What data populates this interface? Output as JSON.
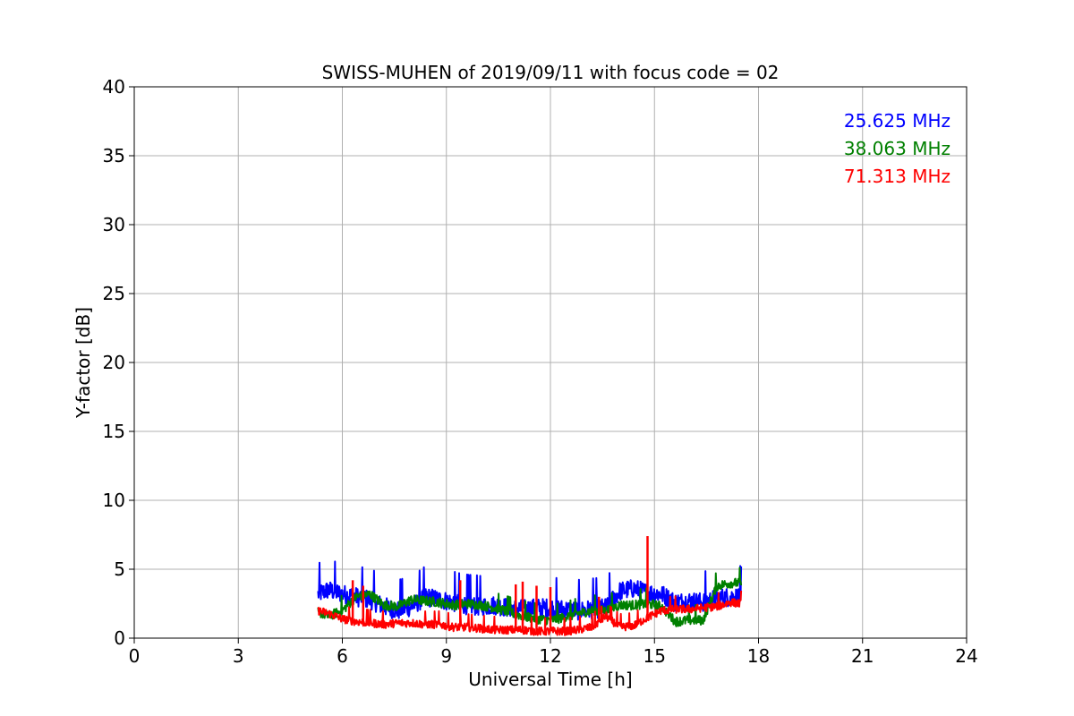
{
  "chart_data": {
    "type": "line",
    "title": "SWISS-MUHEN of 2019/09/11 with focus code = 02",
    "xlabel": "Universal Time [h]",
    "ylabel": "Y-factor [dB]",
    "xlim": [
      0,
      24
    ],
    "ylim": [
      0,
      40
    ],
    "xticks": [
      "0",
      "3",
      "6",
      "9",
      "12",
      "15",
      "18",
      "21",
      "24"
    ],
    "yticks": [
      "0",
      "5",
      "10",
      "15",
      "20",
      "25",
      "30",
      "35",
      "40"
    ],
    "grid": true,
    "legend_position": "top-right",
    "series": [
      {
        "name": "25.625 MHz",
        "color": "#0000ff",
        "x": [
          5.3,
          5.6,
          6.0,
          6.4,
          6.8,
          7.2,
          7.6,
          8.0,
          8.4,
          8.8,
          9.2,
          9.6,
          10.0,
          10.4,
          10.8,
          11.2,
          11.6,
          12.0,
          12.4,
          12.8,
          13.2,
          13.6,
          14.0,
          14.4,
          14.8,
          15.2,
          15.6,
          16.0,
          16.4,
          16.8,
          17.2,
          17.5
        ],
        "y": [
          3.2,
          3.5,
          3.2,
          3.0,
          2.8,
          2.3,
          2.0,
          2.3,
          3.0,
          2.8,
          2.6,
          2.4,
          2.3,
          2.4,
          2.2,
          2.1,
          2.2,
          2.2,
          2.1,
          2.0,
          2.1,
          2.2,
          3.4,
          3.6,
          3.3,
          3.2,
          2.6,
          2.7,
          2.6,
          2.9,
          3.0,
          3.0
        ],
        "noise": 0.7
      },
      {
        "name": "38.063 MHz",
        "color": "#008000",
        "x": [
          5.3,
          5.6,
          6.0,
          6.4,
          6.8,
          7.2,
          7.6,
          8.0,
          8.4,
          8.8,
          9.2,
          9.6,
          10.0,
          10.4,
          10.8,
          11.2,
          11.6,
          12.0,
          12.4,
          12.8,
          13.2,
          13.6,
          14.0,
          14.4,
          14.8,
          15.2,
          15.6,
          16.0,
          16.4,
          16.8,
          17.2,
          17.5
        ],
        "y": [
          1.9,
          1.6,
          2.0,
          3.0,
          3.2,
          2.4,
          2.3,
          2.8,
          2.7,
          2.6,
          2.4,
          2.5,
          2.4,
          2.2,
          1.9,
          1.6,
          1.4,
          1.3,
          1.5,
          1.8,
          2.0,
          2.0,
          2.4,
          2.4,
          2.5,
          2.3,
          1.2,
          1.3,
          1.3,
          3.8,
          4.0,
          4.0
        ],
        "noise": 0.35
      },
      {
        "name": "71.313 MHz",
        "color": "#ff0000",
        "x": [
          5.3,
          5.6,
          6.0,
          6.4,
          6.8,
          7.2,
          7.6,
          8.0,
          8.4,
          8.8,
          9.2,
          9.6,
          10.0,
          10.4,
          10.8,
          11.2,
          11.6,
          12.0,
          12.4,
          12.8,
          13.2,
          13.6,
          14.0,
          14.4,
          14.8,
          15.2,
          15.6,
          16.0,
          16.4,
          16.8,
          17.2,
          17.5
        ],
        "y": [
          2.0,
          1.8,
          1.4,
          1.2,
          1.1,
          1.0,
          1.1,
          1.1,
          1.0,
          1.0,
          0.8,
          0.8,
          0.7,
          0.6,
          0.6,
          0.6,
          0.5,
          0.5,
          0.5,
          0.6,
          0.8,
          1.6,
          0.8,
          0.9,
          1.5,
          2.0,
          2.1,
          2.1,
          2.2,
          2.3,
          2.6,
          2.5
        ],
        "noise": 0.3,
        "spikes": [
          [
            6.3,
            4.2
          ],
          [
            6.6,
            3.8
          ],
          [
            9.4,
            4.2
          ],
          [
            11.0,
            3.9
          ],
          [
            11.2,
            4.1
          ],
          [
            11.6,
            3.8
          ],
          [
            12.0,
            3.7
          ],
          [
            13.4,
            3.0
          ],
          [
            14.8,
            7.4
          ]
        ]
      }
    ]
  }
}
